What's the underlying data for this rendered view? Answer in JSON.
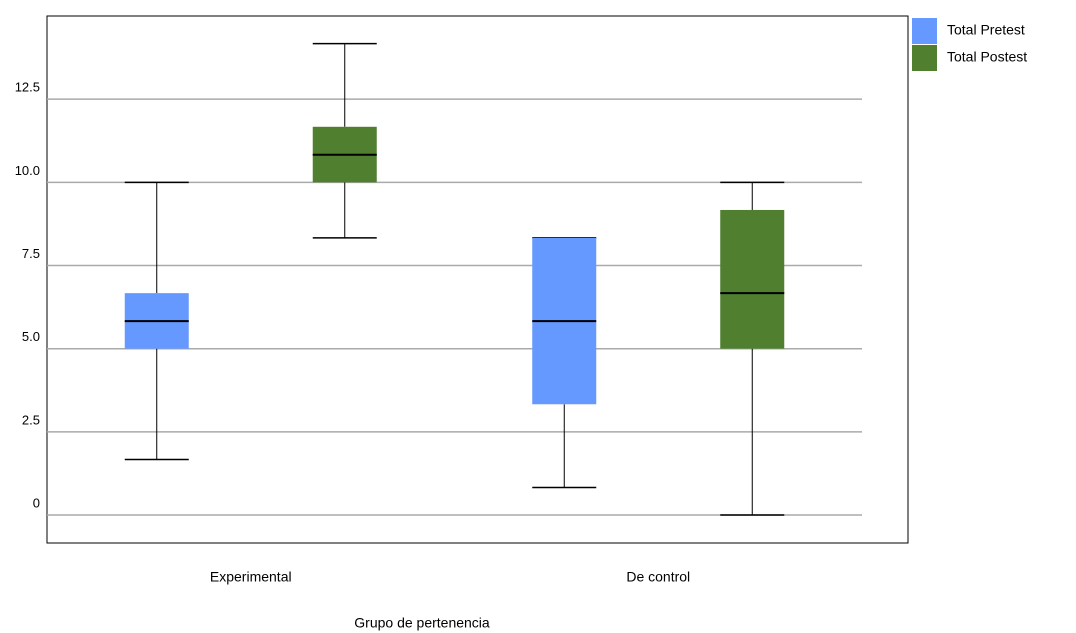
{
  "chart_data": {
    "type": "box",
    "xlabel": "Grupo de pertenencia",
    "categories": [
      "Experimental",
      "De control"
    ],
    "series": [
      {
        "name": "Total Pretest",
        "color": "#6699ff",
        "values": [
          {
            "min": 1.67,
            "q1": 5.0,
            "median": 5.83,
            "q3": 6.67,
            "max": 10.0
          },
          {
            "min": 0.83,
            "q1": 3.33,
            "median": 5.83,
            "q3": 8.33,
            "max": 8.33
          }
        ]
      },
      {
        "name": "Total Postest",
        "color": "#4f7f2f",
        "values": [
          {
            "min": 8.33,
            "q1": 10.0,
            "median": 10.83,
            "q3": 11.67,
            "max": 14.17
          },
          {
            "min": 0,
            "q1": 5.0,
            "median": 6.67,
            "q3": 9.17,
            "max": 10.0
          }
        ]
      }
    ],
    "ylim": [
      -0.84,
      15
    ],
    "yticks": [
      0,
      2.5,
      {
        "value": 5,
        "label": "5.0"
      },
      7.5,
      {
        "value": 10,
        "label": "10.0"
      },
      12.5
    ],
    "grid": true,
    "legend": "right"
  }
}
